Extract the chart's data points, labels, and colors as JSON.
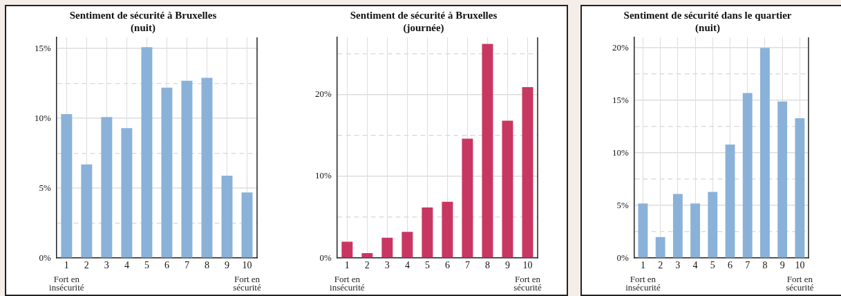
{
  "chart_data": [
    {
      "type": "bar",
      "title": "Sentiment de sécurité à Bruxelles",
      "subtitle": "(nuit)",
      "categories": [
        "1",
        "2",
        "3",
        "4",
        "5",
        "6",
        "7",
        "8",
        "9",
        "10"
      ],
      "values": [
        10.3,
        6.7,
        10.1,
        9.3,
        15.1,
        12.2,
        12.7,
        12.9,
        5.9,
        4.7
      ],
      "color": "#8ab2d9",
      "ylim": [
        0,
        15.8
      ],
      "yticks": [
        {
          "value": 0,
          "label": "0%"
        },
        {
          "value": 2.5,
          "label": null
        },
        {
          "value": 5,
          "label": "5%"
        },
        {
          "value": 7.5,
          "label": null
        },
        {
          "value": 10,
          "label": "10%"
        },
        {
          "value": 12.5,
          "label": null
        },
        {
          "value": 15,
          "label": "15%"
        }
      ],
      "grid": true,
      "legend": false,
      "annotations": [
        "Fort en insécurité",
        "Fort en sécurité"
      ]
    },
    {
      "type": "bar",
      "title": "Sentiment de sécurité à Bruxelles",
      "subtitle": "(journée)",
      "categories": [
        "1",
        "2",
        "3",
        "4",
        "5",
        "6",
        "7",
        "8",
        "9",
        "10"
      ],
      "values": [
        2.0,
        0.6,
        2.5,
        3.2,
        6.2,
        6.9,
        14.6,
        26.2,
        16.8,
        20.9
      ],
      "color": "#c83762",
      "ylim": [
        0,
        27
      ],
      "yticks": [
        {
          "value": 0,
          "label": "0%"
        },
        {
          "value": 5,
          "label": null
        },
        {
          "value": 10,
          "label": "10%"
        },
        {
          "value": 15,
          "label": null
        },
        {
          "value": 20,
          "label": "20%"
        },
        {
          "value": 25,
          "label": null
        }
      ],
      "grid": true,
      "legend": false,
      "annotations": [
        "Fort en insécurité",
        "Fort en sécurité"
      ]
    },
    {
      "type": "bar",
      "title": "Sentiment de sécurité dans le quartier",
      "subtitle": "(nuit)",
      "categories": [
        "1",
        "2",
        "3",
        "4",
        "5",
        "6",
        "7",
        "8",
        "9",
        "10"
      ],
      "values": [
        5.2,
        2.0,
        6.1,
        5.2,
        6.3,
        10.8,
        15.7,
        20.0,
        14.9,
        13.3
      ],
      "color": "#8ab2d9",
      "ylim": [
        0,
        21
      ],
      "yticks": [
        {
          "value": 0,
          "label": "0%"
        },
        {
          "value": 2.5,
          "label": null
        },
        {
          "value": 5,
          "label": "5%"
        },
        {
          "value": 7.5,
          "label": null
        },
        {
          "value": 10,
          "label": "10%"
        },
        {
          "value": 12.5,
          "label": null
        },
        {
          "value": 15,
          "label": "15%"
        },
        {
          "value": 17.5,
          "label": null
        },
        {
          "value": 20,
          "label": "20%"
        }
      ],
      "grid": true,
      "legend": false,
      "annotations": [
        "Fort en insécurité",
        "Fort en sécurité"
      ]
    }
  ]
}
